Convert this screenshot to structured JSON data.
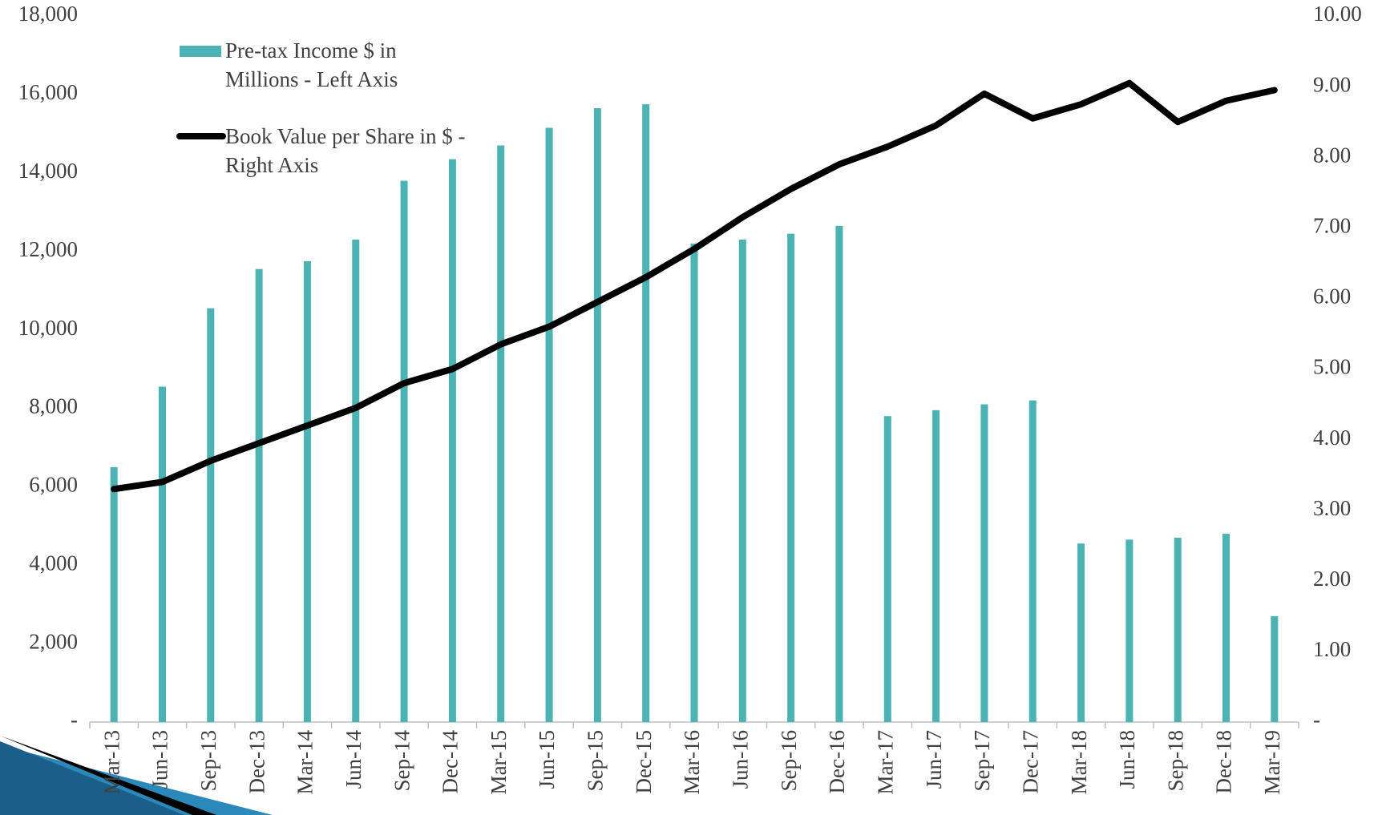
{
  "chart_data": {
    "type": "bar_line",
    "categories": [
      "Mar-13",
      "Jun-13",
      "Sep-13",
      "Dec-13",
      "Mar-14",
      "Jun-14",
      "Sep-14",
      "Dec-14",
      "Mar-15",
      "Jun-15",
      "Sep-15",
      "Dec-15",
      "Mar-16",
      "Jun-16",
      "Sep-16",
      "Dec-16",
      "Mar-17",
      "Jun-17",
      "Sep-17",
      "Dec-17",
      "Mar-18",
      "Jun-18",
      "Sep-18",
      "Dec-18",
      "Mar-19"
    ],
    "series": [
      {
        "name": "Pre-tax Income  $ in Millions - Left Axis",
        "color": "#4bb3b3",
        "kind": "bar",
        "values": [
          6500,
          8550,
          10550,
          11550,
          11750,
          12300,
          13800,
          14350,
          14700,
          15150,
          15650,
          15750,
          12200,
          12300,
          12450,
          12650,
          7800,
          7950,
          8100,
          8200,
          4550,
          4650,
          4700,
          4800,
          2700
        ]
      },
      {
        "name": "Book Value per Share in $ - Right Axis",
        "color": "#000000",
        "kind": "line",
        "axis": "y2",
        "values": [
          3.3,
          3.4,
          3.7,
          3.95,
          4.2,
          4.45,
          4.8,
          5.0,
          5.35,
          5.6,
          5.95,
          6.3,
          6.7,
          7.15,
          7.55,
          7.9,
          8.15,
          8.45,
          8.9,
          8.55,
          8.75,
          9.05,
          8.5,
          8.8,
          8.95
        ]
      }
    ],
    "ylim": [
      0,
      18000
    ],
    "yticks": [
      {
        "value": 0,
        "label": "-"
      },
      {
        "value": 2000,
        "label": "2,000"
      },
      {
        "value": 4000,
        "label": "4,000"
      },
      {
        "value": 6000,
        "label": "6,000"
      },
      {
        "value": 8000,
        "label": "8,000"
      },
      {
        "value": 10000,
        "label": "10,000"
      },
      {
        "value": 12000,
        "label": "12,000"
      },
      {
        "value": 14000,
        "label": "14,000"
      },
      {
        "value": 16000,
        "label": "16,000"
      },
      {
        "value": 18000,
        "label": "18,000"
      }
    ],
    "y2lim": [
      0,
      10
    ],
    "y2ticks": [
      {
        "value": 0,
        "label": "-"
      },
      {
        "value": 1,
        "label": "1.00"
      },
      {
        "value": 2,
        "label": "2.00"
      },
      {
        "value": 3,
        "label": "3.00"
      },
      {
        "value": 4,
        "label": "4.00"
      },
      {
        "value": 5,
        "label": "5.00"
      },
      {
        "value": 6,
        "label": "6.00"
      },
      {
        "value": 7,
        "label": "7.00"
      },
      {
        "value": 8,
        "label": "8.00"
      },
      {
        "value": 9,
        "label": "9.00"
      },
      {
        "value": 10,
        "label": "10.00"
      }
    ],
    "legend": "top-left"
  }
}
